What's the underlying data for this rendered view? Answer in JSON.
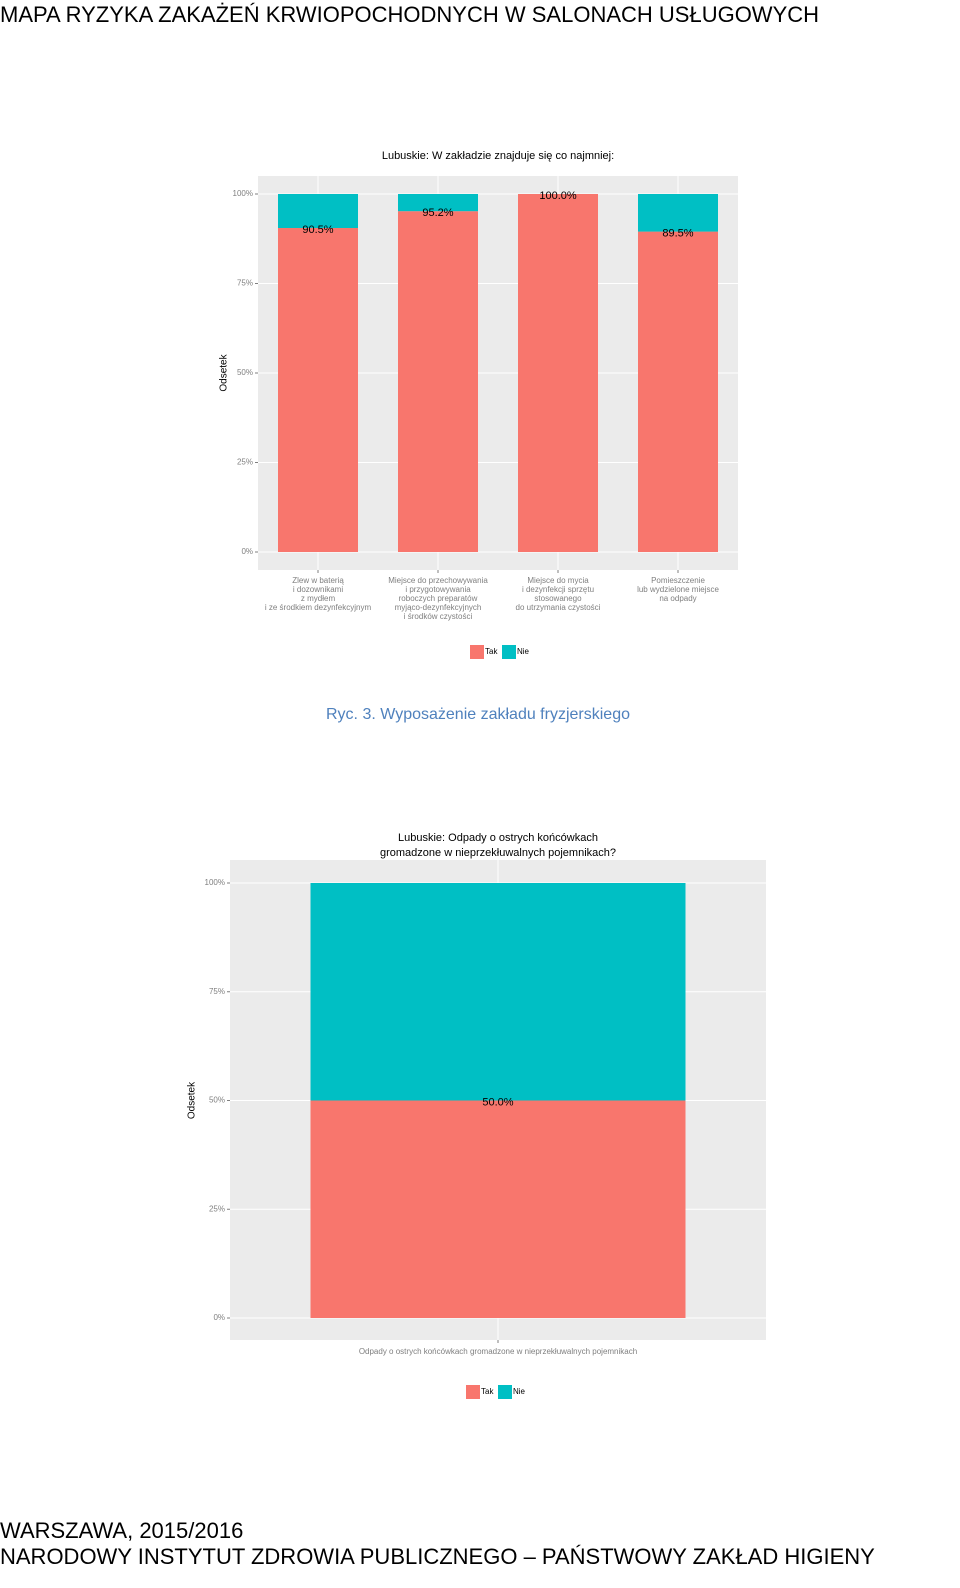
{
  "header": {
    "title": "MAPA RYZYKA ZAKAŻEŃ KRWIOPOCHODNYCH W SALONACH USŁUGOWYCH"
  },
  "chart_data": [
    {
      "type": "stacked_bar",
      "title": "Lubuskie: W zakładzie znajduje się co najmniej:",
      "ylabel": "Odsetek",
      "categories": [
        [
          "Zlew w baterią",
          "i dozownikami",
          "z mydłem",
          "i ze środkiem dezynfekcyjnym"
        ],
        [
          "Miejsce do przechowywania",
          "i przygotowywania",
          "roboczych preparatów",
          "myjąco-dezynfekcyjnych",
          "i środków czystości"
        ],
        [
          "Miejsce do mycia",
          "i dezynfekcji sprzętu",
          "stosowanego",
          "do utrzymania czystości"
        ],
        [
          "Pomieszczenie",
          "lub wydzielone miejsce",
          "na odpady"
        ]
      ],
      "series": [
        {
          "name": "Tak",
          "color": "#f8766d",
          "values": [
            90.5,
            95.2,
            100.0,
            89.5
          ],
          "value_labels": [
            "90.5%",
            "95.2%",
            "100.0%",
            "89.5%"
          ]
        },
        {
          "name": "Nie",
          "color": "#00bfc4",
          "values": [
            9.5,
            4.8,
            0,
            10.5
          ]
        }
      ],
      "ylim": [
        0,
        100
      ],
      "yticks": [
        {
          "value": 0,
          "label": "0%"
        },
        {
          "value": 25,
          "label": "25%"
        },
        {
          "value": 50,
          "label": "50%"
        },
        {
          "value": 75,
          "label": "75%"
        },
        {
          "value": 100,
          "label": "100%"
        }
      ],
      "grid": true,
      "legend": "bottom"
    },
    {
      "type": "stacked_bar",
      "title": [
        "Lubuskie: Odpady o ostrych końcówkach",
        "gromadzone w nieprzekłuwalnych pojemnikach?"
      ],
      "ylabel": "Odsetek",
      "categories": [
        [
          "Odpady o ostrych końcówkach gromadzone w nieprzekłuwalnych pojemnikach"
        ]
      ],
      "series": [
        {
          "name": "Tak",
          "color": "#f8766d",
          "values": [
            50.0
          ],
          "value_labels": [
            "50.0%"
          ]
        },
        {
          "name": "Nie",
          "color": "#00bfc4",
          "values": [
            50.0
          ]
        }
      ],
      "ylim": [
        0,
        100
      ],
      "yticks": [
        {
          "value": 0,
          "label": "0%"
        },
        {
          "value": 25,
          "label": "25%"
        },
        {
          "value": 50,
          "label": "50%"
        },
        {
          "value": 75,
          "label": "75%"
        },
        {
          "value": 100,
          "label": "100%"
        }
      ],
      "grid": true,
      "legend": "bottom"
    }
  ],
  "caption": "Ryc. 3. Wyposażenie zakładu fryzjerskiego",
  "footer": {
    "city": "WARSZAWA, 2015/2016",
    "institute": "NARODOWY INSTYTUT ZDROWIA PUBLICZNEGO – PAŃSTWOWY ZAKŁAD HIGIENY"
  }
}
